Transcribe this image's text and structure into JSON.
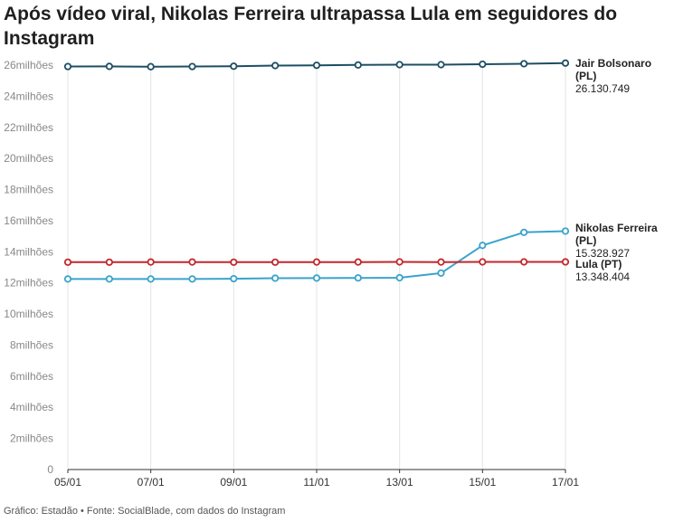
{
  "title": "Após vídeo viral, Nikolas Ferreira ultrapassa Lula em seguidores do Instagram",
  "footer": "Gráfico: Estadão • Fonte: SocialBlade, com dados do Instagram",
  "chart_data": {
    "type": "line",
    "title": "Após vídeo viral, Nikolas Ferreira ultrapassa Lula em seguidores do Instagram",
    "x": [
      "05/01",
      "06/01",
      "07/01",
      "08/01",
      "09/01",
      "10/01",
      "11/01",
      "12/01",
      "13/01",
      "14/01",
      "15/01",
      "16/01",
      "17/01"
    ],
    "x_tick_labels": [
      "05/01",
      "07/01",
      "09/01",
      "11/01",
      "13/01",
      "15/01",
      "17/01"
    ],
    "ylim": [
      0,
      26000000
    ],
    "y_ticks": [
      0,
      2000000,
      4000000,
      6000000,
      8000000,
      10000000,
      12000000,
      14000000,
      16000000,
      18000000,
      20000000,
      22000000,
      24000000,
      26000000
    ],
    "y_tick_labels": [
      "0",
      "2milhões",
      "4milhões",
      "6milhões",
      "8milhões",
      "10milhões",
      "12milhões",
      "14milhões",
      "16milhões",
      "18milhões",
      "20milhões",
      "22milhões",
      "24milhões",
      "26milhões"
    ],
    "grid": "vertical",
    "series": [
      {
        "name": "Jair Bolsonaro (PL)",
        "label_lines": [
          "Jair Bolsonaro",
          "(PL)"
        ],
        "last_value_label": "26.130.749",
        "color": "#1d4e63",
        "values": [
          25910000,
          25920000,
          25900000,
          25910000,
          25930000,
          25970000,
          25990000,
          26010000,
          26030000,
          26030000,
          26060000,
          26090000,
          26130749
        ]
      },
      {
        "name": "Nikolas Ferreira (PL)",
        "label_lines": [
          "Nikolas Ferreira",
          "(PL)"
        ],
        "last_value_label": "15.328.927",
        "color": "#3aa3cc",
        "values": [
          12250000,
          12250000,
          12250000,
          12250000,
          12270000,
          12300000,
          12310000,
          12320000,
          12330000,
          12630000,
          14410000,
          15250000,
          15328927
        ]
      },
      {
        "name": "Lula (PT)",
        "label_lines": [
          "Lula (PT)"
        ],
        "last_value_label": "13.348.404",
        "color": "#c1272d",
        "values": [
          13330000,
          13330000,
          13340000,
          13340000,
          13330000,
          13330000,
          13340000,
          13340000,
          13350000,
          13340000,
          13350000,
          13350000,
          13348404
        ]
      }
    ]
  }
}
